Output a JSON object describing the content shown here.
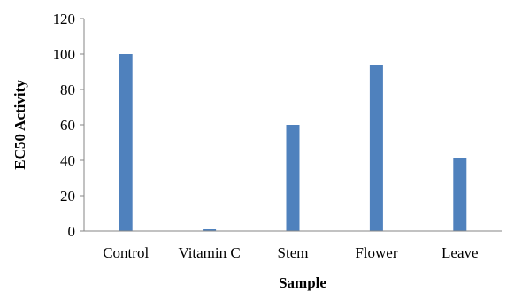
{
  "chart_data": {
    "type": "bar",
    "categories": [
      "Control",
      "Vitamin C",
      "Stem",
      "Flower",
      "Leave"
    ],
    "values": [
      100,
      1,
      60,
      94,
      41
    ],
    "xlabel": "Sample",
    "ylabel": "EC50 Activity",
    "ylim": [
      0,
      120
    ],
    "yticks": [
      0,
      20,
      40,
      60,
      80,
      100,
      120
    ],
    "grid": false,
    "legend": "none",
    "bar_color": "#4f81bd",
    "axis_color": "#868686"
  }
}
